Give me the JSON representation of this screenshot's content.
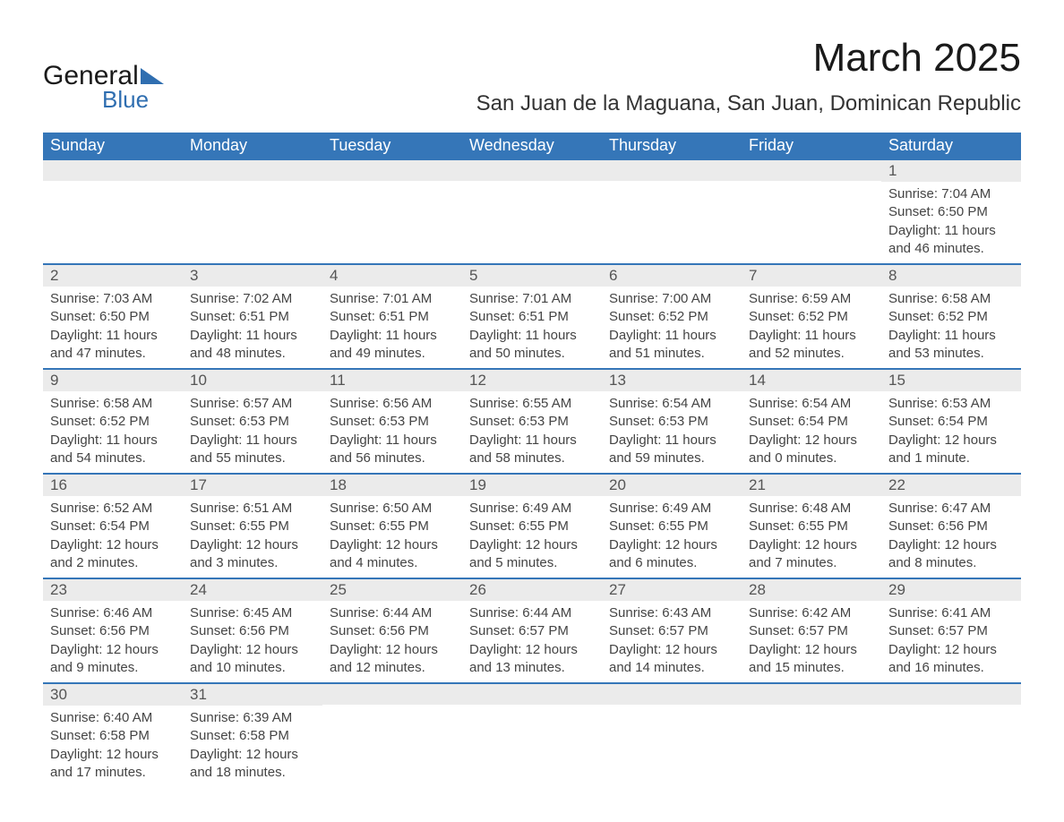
{
  "brand": {
    "word1": "General",
    "word2": "Blue"
  },
  "title": "March 2025",
  "subtitle": "San Juan de la Maguana, San Juan, Dominican Republic",
  "colors": {
    "header_bg": "#3576b8",
    "header_text": "#ffffff",
    "daynum_bg": "#ebebeb",
    "row_border": "#3576b8",
    "text": "#444444",
    "logo_blue": "#2f6eb0"
  },
  "dayNames": [
    "Sunday",
    "Monday",
    "Tuesday",
    "Wednesday",
    "Thursday",
    "Friday",
    "Saturday"
  ],
  "layout": {
    "columns": 7,
    "rows": 6,
    "first_day_column_index": 6,
    "days_in_month": 31
  },
  "days": {
    "1": {
      "sunrise": "7:04 AM",
      "sunset": "6:50 PM",
      "daylight": "11 hours and 46 minutes."
    },
    "2": {
      "sunrise": "7:03 AM",
      "sunset": "6:50 PM",
      "daylight": "11 hours and 47 minutes."
    },
    "3": {
      "sunrise": "7:02 AM",
      "sunset": "6:51 PM",
      "daylight": "11 hours and 48 minutes."
    },
    "4": {
      "sunrise": "7:01 AM",
      "sunset": "6:51 PM",
      "daylight": "11 hours and 49 minutes."
    },
    "5": {
      "sunrise": "7:01 AM",
      "sunset": "6:51 PM",
      "daylight": "11 hours and 50 minutes."
    },
    "6": {
      "sunrise": "7:00 AM",
      "sunset": "6:52 PM",
      "daylight": "11 hours and 51 minutes."
    },
    "7": {
      "sunrise": "6:59 AM",
      "sunset": "6:52 PM",
      "daylight": "11 hours and 52 minutes."
    },
    "8": {
      "sunrise": "6:58 AM",
      "sunset": "6:52 PM",
      "daylight": "11 hours and 53 minutes."
    },
    "9": {
      "sunrise": "6:58 AM",
      "sunset": "6:52 PM",
      "daylight": "11 hours and 54 minutes."
    },
    "10": {
      "sunrise": "6:57 AM",
      "sunset": "6:53 PM",
      "daylight": "11 hours and 55 minutes."
    },
    "11": {
      "sunrise": "6:56 AM",
      "sunset": "6:53 PM",
      "daylight": "11 hours and 56 minutes."
    },
    "12": {
      "sunrise": "6:55 AM",
      "sunset": "6:53 PM",
      "daylight": "11 hours and 58 minutes."
    },
    "13": {
      "sunrise": "6:54 AM",
      "sunset": "6:53 PM",
      "daylight": "11 hours and 59 minutes."
    },
    "14": {
      "sunrise": "6:54 AM",
      "sunset": "6:54 PM",
      "daylight": "12 hours and 0 minutes."
    },
    "15": {
      "sunrise": "6:53 AM",
      "sunset": "6:54 PM",
      "daylight": "12 hours and 1 minute."
    },
    "16": {
      "sunrise": "6:52 AM",
      "sunset": "6:54 PM",
      "daylight": "12 hours and 2 minutes."
    },
    "17": {
      "sunrise": "6:51 AM",
      "sunset": "6:55 PM",
      "daylight": "12 hours and 3 minutes."
    },
    "18": {
      "sunrise": "6:50 AM",
      "sunset": "6:55 PM",
      "daylight": "12 hours and 4 minutes."
    },
    "19": {
      "sunrise": "6:49 AM",
      "sunset": "6:55 PM",
      "daylight": "12 hours and 5 minutes."
    },
    "20": {
      "sunrise": "6:49 AM",
      "sunset": "6:55 PM",
      "daylight": "12 hours and 6 minutes."
    },
    "21": {
      "sunrise": "6:48 AM",
      "sunset": "6:55 PM",
      "daylight": "12 hours and 7 minutes."
    },
    "22": {
      "sunrise": "6:47 AM",
      "sunset": "6:56 PM",
      "daylight": "12 hours and 8 minutes."
    },
    "23": {
      "sunrise": "6:46 AM",
      "sunset": "6:56 PM",
      "daylight": "12 hours and 9 minutes."
    },
    "24": {
      "sunrise": "6:45 AM",
      "sunset": "6:56 PM",
      "daylight": "12 hours and 10 minutes."
    },
    "25": {
      "sunrise": "6:44 AM",
      "sunset": "6:56 PM",
      "daylight": "12 hours and 12 minutes."
    },
    "26": {
      "sunrise": "6:44 AM",
      "sunset": "6:57 PM",
      "daylight": "12 hours and 13 minutes."
    },
    "27": {
      "sunrise": "6:43 AM",
      "sunset": "6:57 PM",
      "daylight": "12 hours and 14 minutes."
    },
    "28": {
      "sunrise": "6:42 AM",
      "sunset": "6:57 PM",
      "daylight": "12 hours and 15 minutes."
    },
    "29": {
      "sunrise": "6:41 AM",
      "sunset": "6:57 PM",
      "daylight": "12 hours and 16 minutes."
    },
    "30": {
      "sunrise": "6:40 AM",
      "sunset": "6:58 PM",
      "daylight": "12 hours and 17 minutes."
    },
    "31": {
      "sunrise": "6:39 AM",
      "sunset": "6:58 PM",
      "daylight": "12 hours and 18 minutes."
    }
  },
  "labels": {
    "sunrise_prefix": "Sunrise: ",
    "sunset_prefix": "Sunset: ",
    "daylight_prefix": "Daylight: "
  }
}
